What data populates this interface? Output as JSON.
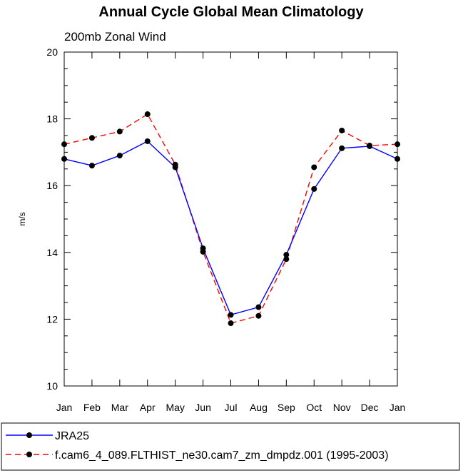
{
  "chart_data": {
    "type": "line",
    "title": "Annual Cycle Global Mean Climatology",
    "subtitle": "200mb Zonal Wind",
    "xlabel": "",
    "ylabel": "m/s",
    "categories": [
      "Jan",
      "Feb",
      "Mar",
      "Apr",
      "May",
      "Jun",
      "Jul",
      "Aug",
      "Sep",
      "Oct",
      "Nov",
      "Dec",
      "Jan"
    ],
    "ylim": [
      10,
      20
    ],
    "yticks": [
      "10",
      "12",
      "14",
      "16",
      "18",
      "20"
    ],
    "grid": false,
    "legend_position": "bottom",
    "series": [
      {
        "name": "JRA25",
        "color": "#0000ff",
        "dash": "solid",
        "values": [
          16.8,
          16.6,
          16.9,
          17.33,
          16.55,
          14.12,
          12.13,
          12.36,
          13.93,
          15.9,
          17.12,
          17.18,
          16.8
        ]
      },
      {
        "name": "f.cam6_4_089.FLTHIST_ne30.cam7_zm_dmpdz.001 (1995-2003)",
        "color": "#ff0000",
        "dash": "dashed",
        "values": [
          17.24,
          17.43,
          17.62,
          18.14,
          16.63,
          14.02,
          11.88,
          12.1,
          13.8,
          16.55,
          17.65,
          17.2,
          17.24
        ]
      }
    ]
  }
}
